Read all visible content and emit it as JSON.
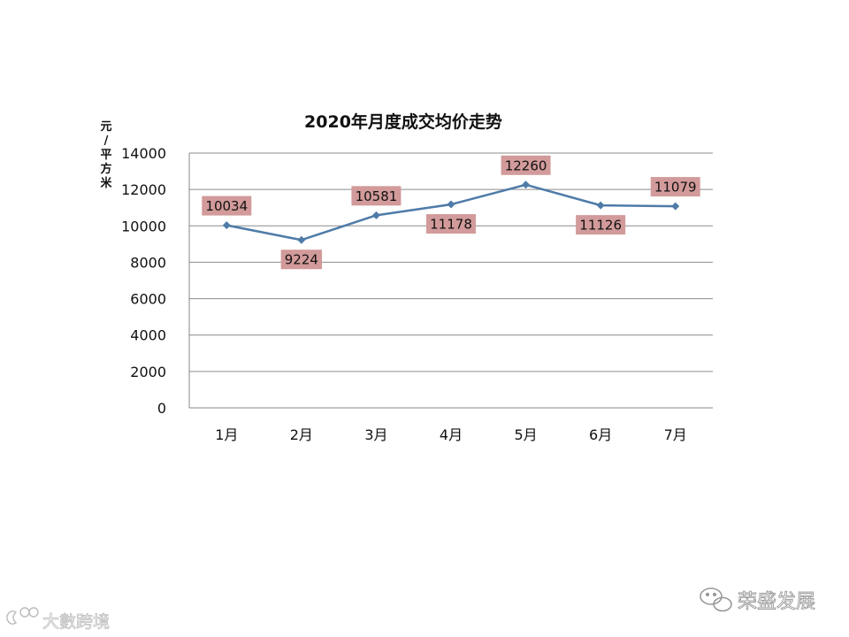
{
  "chart_data": {
    "type": "line",
    "title": "2020年月度成交均价走势",
    "ylabel": "元/平方米",
    "ylabel_chars": [
      "元",
      "/",
      "平",
      "方",
      "米"
    ],
    "categories": [
      "1月",
      "2月",
      "3月",
      "4月",
      "5月",
      "6月",
      "7月"
    ],
    "series": [
      {
        "values": [
          10034,
          9224,
          10581,
          11178,
          12260,
          11126,
          11079
        ]
      }
    ],
    "data_labels": [
      "10034",
      "9224",
      "10581",
      "11178",
      "12260",
      "11126",
      "11079"
    ],
    "ylim": [
      0,
      14000
    ],
    "yticks": [
      0,
      2000,
      4000,
      6000,
      8000,
      10000,
      12000,
      14000
    ],
    "ytick_labels": [
      "0",
      "2000",
      "4000",
      "6000",
      "8000",
      "10000",
      "12000",
      "14000"
    ],
    "grid": true,
    "legend": "none",
    "line_color": "#4F7BA8",
    "label_bg_color": "#D29A9A"
  },
  "watermarks": {
    "right_text": "荣盛发展",
    "left_text": "大數跨境"
  }
}
